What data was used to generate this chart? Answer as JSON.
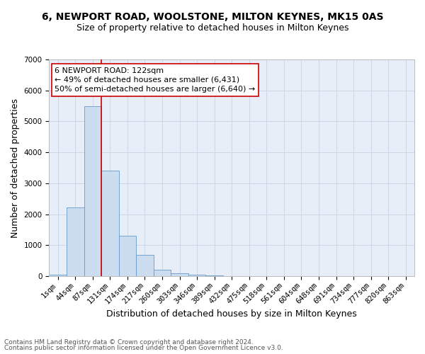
{
  "title_line1": "6, NEWPORT ROAD, WOOLSTONE, MILTON KEYNES, MK15 0AS",
  "title_line2": "Size of property relative to detached houses in Milton Keynes",
  "xlabel": "Distribution of detached houses by size in Milton Keynes",
  "ylabel": "Number of detached properties",
  "bar_color": "#ccddf0",
  "bar_edge_color": "#6699cc",
  "grid_color": "#ccd8e8",
  "background_color": "#e8eef8",
  "vline_color": "#cc0000",
  "annotation_box_edge_color": "#cc0000",
  "categories": [
    "1sqm",
    "44sqm",
    "87sqm",
    "131sqm",
    "174sqm",
    "217sqm",
    "260sqm",
    "303sqm",
    "346sqm",
    "389sqm",
    "432sqm",
    "475sqm",
    "518sqm",
    "561sqm",
    "604sqm",
    "648sqm",
    "691sqm",
    "734sqm",
    "777sqm",
    "820sqm",
    "863sqm"
  ],
  "values": [
    50,
    2220,
    5500,
    3400,
    1300,
    680,
    200,
    105,
    55,
    20,
    5,
    3,
    2,
    1,
    1,
    0,
    0,
    0,
    0,
    0,
    0
  ],
  "ylim": [
    0,
    7000
  ],
  "yticks": [
    0,
    1000,
    2000,
    3000,
    4000,
    5000,
    6000,
    7000
  ],
  "property_label": "6 NEWPORT ROAD: 122sqm",
  "pct_smaller": 49,
  "n_smaller": 6431,
  "pct_larger": 50,
  "n_larger": 6640,
  "vline_x_index": 2.5,
  "footer_line1": "Contains HM Land Registry data © Crown copyright and database right 2024.",
  "footer_line2": "Contains public sector information licensed under the Open Government Licence v3.0.",
  "title_fontsize": 10,
  "subtitle_fontsize": 9,
  "axis_label_fontsize": 9,
  "tick_fontsize": 7.5,
  "annotation_fontsize": 8,
  "footer_fontsize": 6.5
}
